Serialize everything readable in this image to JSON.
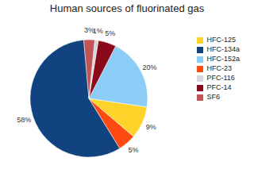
{
  "chart_data": {
    "type": "pie",
    "title": "Human sources of fluorinated gas",
    "categories": [
      "HFC-134a",
      "HFC-23",
      "HFC-125",
      "HFC-152a",
      "PFC-14",
      "PFC-116",
      "SF6"
    ],
    "values": [
      58,
      5,
      9,
      20,
      5,
      1,
      3
    ],
    "value_labels": [
      "58%",
      "5%",
      "9%",
      "20%",
      "5%",
      "1%",
      "3%"
    ],
    "colors": [
      "#10437f",
      "#ff4a12",
      "#ffd42a",
      "#8ccdf8",
      "#8a0a1c",
      "#d6d6de",
      "#c05456"
    ],
    "data_labels": true,
    "legend": "right"
  }
}
